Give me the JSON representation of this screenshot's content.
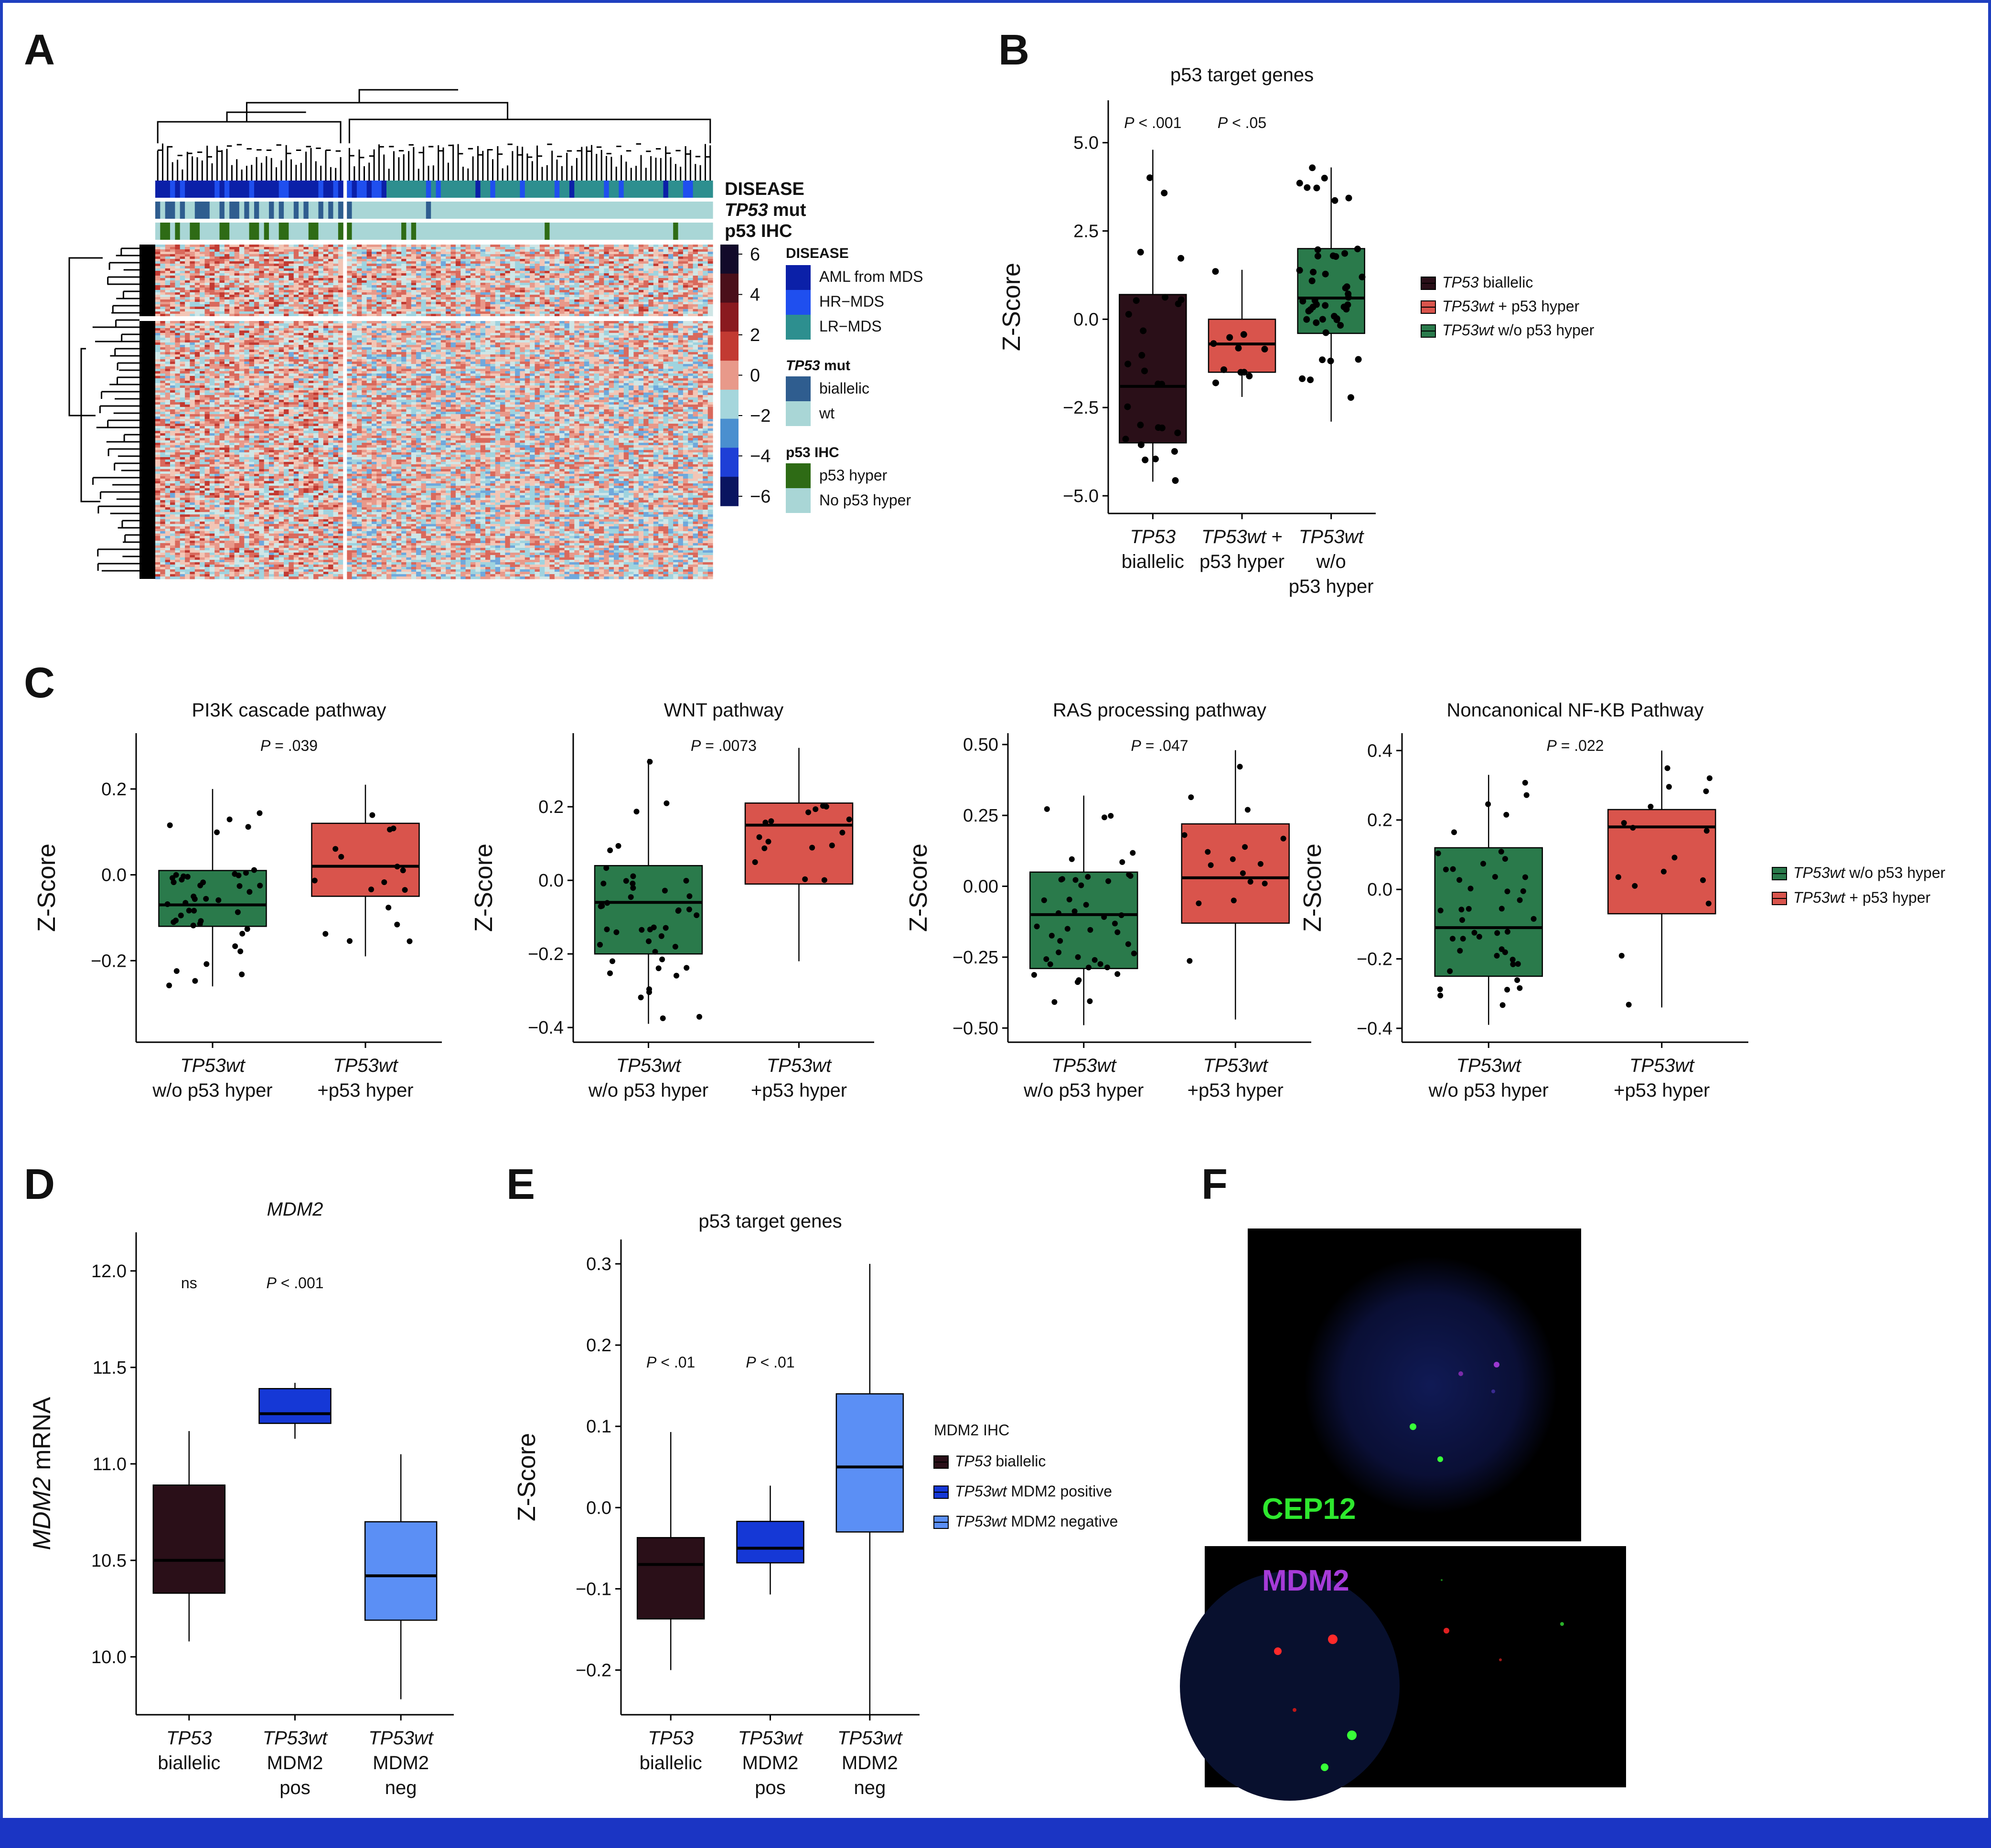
{
  "colors": {
    "biallelic": "#2a0f18",
    "hyper_red": "#d9544c",
    "wo_green": "#2a7a4b",
    "mdm2_pos": "#1538d6",
    "mdm2_neg": "#5b8ff5",
    "aml": "#0b20a8",
    "hrmds": "#1f4fef",
    "lrmds": "#2d8f8f",
    "mut_biallelic": "#2f5d8f",
    "wt": "#a9d6d6",
    "p53hyper": "#2e6b15",
    "nohyper": "#a9d6d6"
  },
  "panelA": {
    "label": "A",
    "ann_titles": [
      "DISEASE",
      "TP53",
      "mut",
      "p53 IHC"
    ],
    "scale_ticks": [
      "6",
      "4",
      "2",
      "0",
      "−2",
      "−4",
      "−6"
    ],
    "legend": {
      "disease_title": "DISEASE",
      "disease_items": [
        "AML from MDS",
        "HR−MDS",
        "LR−MDS"
      ],
      "mut_title_it": "TP53",
      "mut_title": " mut",
      "mut_items": [
        "biallelic",
        "wt"
      ],
      "ihc_title": "p53 IHC",
      "ihc_items": [
        "p53 hyper",
        "No p53 hyper"
      ]
    }
  },
  "panelF": {
    "label": "F",
    "top_label": "CEP12",
    "bottom_label": "MDM2"
  },
  "chart_data": [
    {
      "id": "B",
      "type": "box",
      "label": "B",
      "title": "p53 target genes",
      "ylabel": "Z-Score",
      "ylim": [
        -5.5,
        6.2
      ],
      "yticks": [
        5.0,
        2.5,
        0.0,
        -2.5,
        -5.0
      ],
      "ytick_labels": [
        "5.0",
        "2.5",
        "0.0",
        "−2.5",
        "−5.0"
      ],
      "categories": [
        [
          "TP53|biallelic"
        ],
        [
          "TP53wt +|p53 hyper"
        ],
        [
          "TP53wt|w/o|p53 hyper"
        ]
      ],
      "boxes": [
        {
          "name": "TP53 biallelic",
          "q1": -3.5,
          "median": -1.9,
          "q3": 0.7,
          "whislo": -4.6,
          "whishi": 4.8,
          "color": "biallelic"
        },
        {
          "name": "TP53wt + p53 hyper",
          "q1": -1.5,
          "median": -0.7,
          "q3": 0.0,
          "whislo": -2.2,
          "whishi": 1.4,
          "color": "hyper_red"
        },
        {
          "name": "TP53wt w/o p53 hyper",
          "q1": -0.4,
          "median": 0.6,
          "q3": 2.0,
          "whislo": -2.9,
          "whishi": 4.3,
          "color": "wo_green"
        }
      ],
      "pvalues": [
        "P < .001",
        "P < .05",
        ""
      ],
      "legend": [
        "TP53 biallelic",
        "TP53wt + p53 hyper",
        "TP53wt w/o p53 hyper"
      ]
    },
    {
      "id": "C1",
      "type": "box",
      "label": "C",
      "title": "PI3K cascade pathway",
      "ylabel": "Z-Score",
      "ylim": [
        -0.39,
        0.33
      ],
      "yticks": [
        0.2,
        0.0,
        -0.2
      ],
      "ytick_labels": [
        "0.2",
        "0.0",
        "−0.2"
      ],
      "categories": [
        "TP53wt|w/o p53 hyper",
        "TP53wt|+p53 hyper"
      ],
      "boxes": [
        {
          "name": "TP53wt w/o p53 hyper",
          "q1": -0.12,
          "median": -0.07,
          "q3": 0.01,
          "whislo": -0.26,
          "whishi": 0.2,
          "color": "wo_green"
        },
        {
          "name": "TP53wt + p53 hyper",
          "q1": -0.05,
          "median": 0.02,
          "q3": 0.12,
          "whislo": -0.19,
          "whishi": 0.21,
          "color": "hyper_red"
        }
      ],
      "pvalue": "P = .039"
    },
    {
      "id": "C2",
      "type": "box",
      "title": "WNT pathway",
      "ylabel": "Z-Score",
      "ylim": [
        -0.44,
        0.4
      ],
      "yticks": [
        0.2,
        0.0,
        -0.2,
        -0.4
      ],
      "ytick_labels": [
        "0.2",
        "0.0",
        "−0.2",
        "−0.4"
      ],
      "categories": [
        "TP53wt|w/o p53 hyper",
        "TP53wt|+p53 hyper"
      ],
      "boxes": [
        {
          "name": "TP53wt w/o p53 hyper",
          "q1": -0.2,
          "median": -0.06,
          "q3": 0.04,
          "whislo": -0.39,
          "whishi": 0.33,
          "color": "wo_green"
        },
        {
          "name": "TP53wt + p53 hyper",
          "q1": -0.01,
          "median": 0.15,
          "q3": 0.21,
          "whislo": -0.22,
          "whishi": 0.36,
          "color": "hyper_red"
        }
      ],
      "pvalue": "P = .0073"
    },
    {
      "id": "C3",
      "type": "box",
      "title": "RAS processing pathway",
      "ylabel": "Z-Score",
      "ylim": [
        -0.55,
        0.54
      ],
      "yticks": [
        0.5,
        0.25,
        0.0,
        -0.25,
        -0.5
      ],
      "ytick_labels": [
        "0.50",
        "0.25",
        "0.00",
        "−0.25",
        "−0.50"
      ],
      "categories": [
        "TP53wt|w/o p53 hyper",
        "TP53wt|+p53 hyper"
      ],
      "boxes": [
        {
          "name": "TP53wt w/o p53 hyper",
          "q1": -0.29,
          "median": -0.1,
          "q3": 0.05,
          "whislo": -0.49,
          "whishi": 0.32,
          "color": "wo_green"
        },
        {
          "name": "TP53wt + p53 hyper",
          "q1": -0.13,
          "median": 0.03,
          "q3": 0.22,
          "whislo": -0.47,
          "whishi": 0.48,
          "color": "hyper_red"
        }
      ],
      "pvalue": "P = .047"
    },
    {
      "id": "C4",
      "type": "box",
      "title": "Noncanonical NF-KB Pathway",
      "ylabel": "Z-Score",
      "ylim": [
        -0.44,
        0.45
      ],
      "yticks": [
        0.4,
        0.2,
        0.0,
        -0.2,
        -0.4
      ],
      "ytick_labels": [
        "0.4",
        "0.2",
        "0.0",
        "−0.2",
        "−0.4"
      ],
      "categories": [
        "TP53wt|w/o p53 hyper",
        "TP53wt|+p53 hyper"
      ],
      "boxes": [
        {
          "name": "TP53wt w/o p53 hyper",
          "q1": -0.25,
          "median": -0.11,
          "q3": 0.12,
          "whislo": -0.39,
          "whishi": 0.33,
          "color": "wo_green"
        },
        {
          "name": "TP53wt + p53 hyper",
          "q1": -0.07,
          "median": 0.18,
          "q3": 0.23,
          "whislo": -0.34,
          "whishi": 0.4,
          "color": "hyper_red"
        }
      ],
      "pvalue": "P = .022",
      "legend": [
        "TP53wt w/o p53 hyper",
        "TP53wt + p53 hyper"
      ]
    },
    {
      "id": "D",
      "type": "box",
      "label": "D",
      "title": "MDM2",
      "ylabel": "MDM2 mRNA",
      "ylim": [
        9.7,
        12.2
      ],
      "yticks": [
        12.0,
        11.5,
        11.0,
        10.5,
        10.0
      ],
      "ytick_labels": [
        "12.0",
        "11.5",
        "11.0",
        "10.5",
        "10.0"
      ],
      "categories": [
        "TP53|biallelic",
        "TP53wt|MDM2|pos",
        "TP53wt|MDM2|neg"
      ],
      "boxes": [
        {
          "name": "TP53 biallelic",
          "q1": 10.33,
          "median": 10.5,
          "q3": 10.89,
          "whislo": 10.08,
          "whishi": 11.17,
          "color": "biallelic"
        },
        {
          "name": "TP53wt MDM2 pos",
          "q1": 11.21,
          "median": 11.26,
          "q3": 11.39,
          "whislo": 11.13,
          "whishi": 11.42,
          "color": "mdm2_pos"
        },
        {
          "name": "TP53wt MDM2 neg",
          "q1": 10.19,
          "median": 10.42,
          "q3": 10.7,
          "whislo": 9.78,
          "whishi": 11.05,
          "color": "mdm2_neg"
        }
      ],
      "pvalues": [
        "ns",
        "P < .001",
        ""
      ]
    },
    {
      "id": "E",
      "type": "box",
      "label": "E",
      "title": "p53 target genes",
      "ylabel": "Z-Score",
      "ylim": [
        -0.255,
        0.33
      ],
      "yticks": [
        0.3,
        0.2,
        0.1,
        0.0,
        -0.1,
        -0.2
      ],
      "ytick_labels": [
        "0.3",
        "0.2",
        "0.1",
        "0.0",
        "−0.1",
        "−0.2"
      ],
      "categories": [
        "TP53|biallelic",
        "TP53wt|MDM2|pos",
        "TP53wt|MDM2|neg"
      ],
      "boxes": [
        {
          "name": "TP53 biallelic",
          "q1": -0.137,
          "median": -0.07,
          "q3": -0.037,
          "whislo": -0.2,
          "whishi": 0.093,
          "color": "biallelic"
        },
        {
          "name": "TP53wt MDM2 positive",
          "q1": -0.068,
          "median": -0.05,
          "q3": -0.017,
          "whislo": -0.107,
          "whishi": 0.027,
          "color": "mdm2_pos"
        },
        {
          "name": "TP53wt MDM2 negative",
          "q1": -0.03,
          "median": 0.05,
          "q3": 0.14,
          "whislo": -0.255,
          "whishi": 0.3,
          "color": "mdm2_neg"
        }
      ],
      "pvalues": [
        "P < .01",
        "P < .01",
        ""
      ],
      "legend_title": "MDM2 IHC",
      "legend": [
        "TP53 biallelic",
        "TP53wt MDM2 positive",
        "TP53wt MDM2 negative"
      ]
    }
  ]
}
